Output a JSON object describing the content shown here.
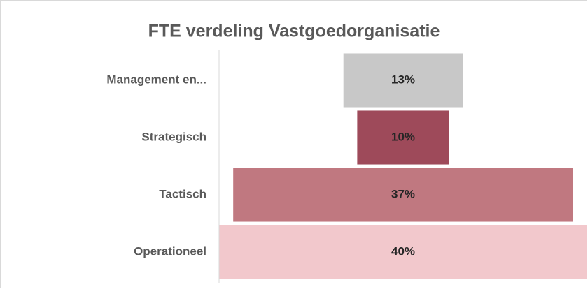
{
  "chart_data": {
    "type": "funnel",
    "title": "FTE verdeling Vastgoedorganisatie",
    "categories": [
      "Management en...",
      "Strategisch",
      "Tactisch",
      "Operationeel"
    ],
    "values": [
      13,
      10,
      37,
      40
    ],
    "value_labels": [
      "13%",
      "10%",
      "37%",
      "40%"
    ],
    "colors": [
      "#c8c8c8",
      "#9e4a5a",
      "#c07880",
      "#f2c8cc"
    ]
  }
}
